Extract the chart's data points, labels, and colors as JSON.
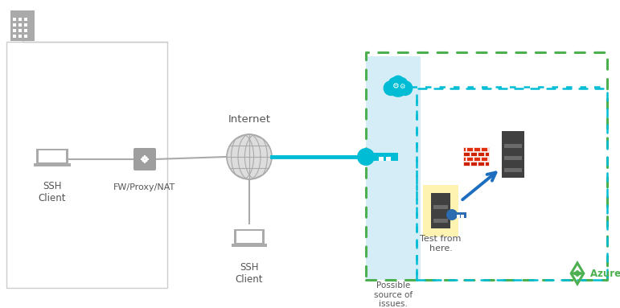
{
  "bg_color": "#ffffff",
  "gray": "#9E9E9E",
  "light_gray": "#BDBDBD",
  "dark_gray": "#616161",
  "cyan": "#00BCD4",
  "blue_arrow": "#1E6EBF",
  "green_dot": "#4CAF50",
  "light_blue_bg": "#CBEAF7",
  "yellow_bg": "#FEF3B0",
  "azure_green": "#4CAF50",
  "red_brick": "#C62828",
  "text_color": "#555555",
  "fw_label": "FW/Proxy/NAT",
  "internet_label": "Internet",
  "ssh_client_label": "SSH\nClient",
  "possible_label": "Possible\nsource of\nissues.",
  "azure_label": "Azure VNet"
}
